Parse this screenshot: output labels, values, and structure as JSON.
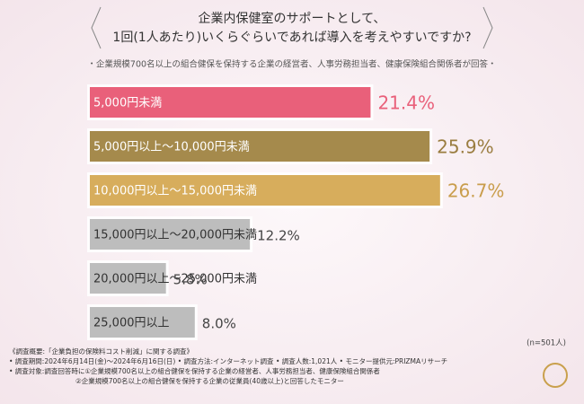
{
  "chart_data": {
    "type": "bar",
    "orientation": "horizontal",
    "title": [
      "企業内保健室のサポートとして、",
      "1回(1人あたり)いくらぐらいであれば導入を考えやすいですか?"
    ],
    "subtitle": "・企業規模700名以上の組合健保を保持する企業の経営者、人事労務担当者、健康保険組合関係者が回答・",
    "categories": [
      "5,000円未満",
      "5,000円以上～10,000円未満",
      "10,000円以上～15,000円未満",
      "15,000円以上～20,000円未満",
      "20,000円以上～25,000円未満",
      "25,000円以上"
    ],
    "values": [
      21.4,
      25.9,
      26.7,
      12.2,
      5.8,
      8.0
    ],
    "value_labels": [
      "21.4%",
      "25.9%",
      "26.7%",
      "12.2%",
      "5.8%",
      "8.0%"
    ],
    "colors": [
      "#e9607a",
      "#a58a4c",
      "#d7ad5c",
      "#bdbdbd",
      "#bdbdbd",
      "#bdbdbd"
    ],
    "label_colors": [
      "#e9607a",
      "#9a7d40",
      "#c99d4c",
      "#444444",
      "#444444",
      "#444444"
    ],
    "text_colors": [
      "#ffffff",
      "#ffffff",
      "#ffffff",
      "#333333",
      "#333333",
      "#333333"
    ],
    "sample_note": "(n=501人)",
    "notes": [
      "《調査概要:「企業負担の保険料コスト削減」に関する調査》",
      "• 調査期間:2024年6月14日(金)～2024年6月16日(日) • 調査方法:インターネット調査 • 調査人数:1,021人 • モニター提供元:PRIZMAリサーチ",
      "• 調査対象:調査回答時に①企業規模700名以上の組合健保を保持する企業の経営者、人事労務担当者、健康保険組合関係者",
      "②企業規模700名以上の組合健保を保持する企業の従業員(40歳以上)と回答したモニター"
    ]
  }
}
